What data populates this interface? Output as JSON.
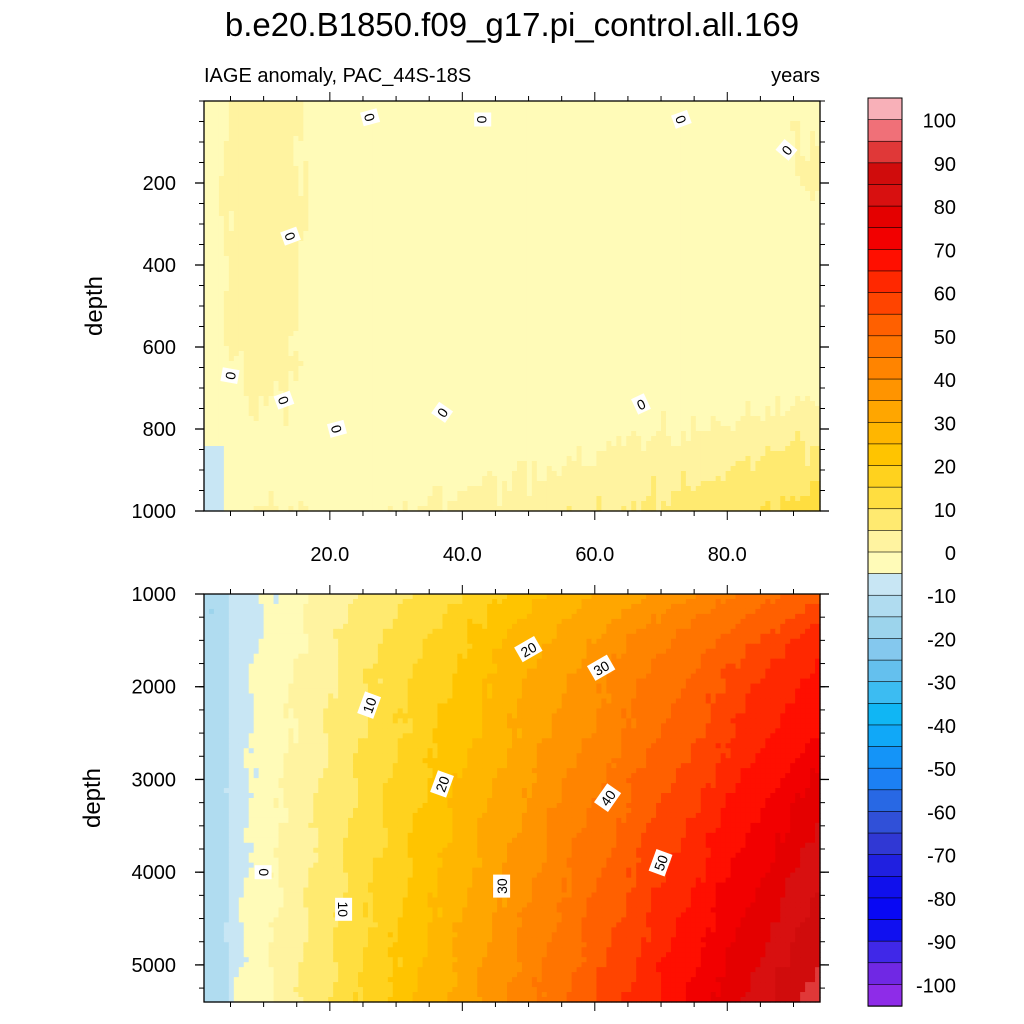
{
  "figure": {
    "title": "b.e20.B1850.f09_g17.pi_control.all.169",
    "subtitle_left": "IAGE anomaly, PAC_44S-18S",
    "subtitle_right": "years"
  },
  "colorbar": {
    "labels": [
      "100",
      "90",
      "80",
      "70",
      "60",
      "50",
      "40",
      "30",
      "20",
      "10",
      "0",
      "-10",
      "-20",
      "-30",
      "-40",
      "-50",
      "-60",
      "-70",
      "-80",
      "-90",
      "-100"
    ],
    "levels_top_to_bottom": [
      105,
      100,
      95,
      90,
      85,
      80,
      75,
      70,
      65,
      60,
      55,
      50,
      45,
      40,
      35,
      30,
      25,
      20,
      15,
      10,
      5,
      0,
      -5,
      -10,
      -15,
      -20,
      -25,
      -30,
      -35,
      -40,
      -45,
      -50,
      -55,
      -60,
      -65,
      -70,
      -75,
      -80,
      -85,
      -90,
      -95,
      -100,
      -105
    ],
    "colors_top_to_bottom": [
      "#f8b0b8",
      "#f07078",
      "#e03838",
      "#d00c0c",
      "#d81010",
      "#e40000",
      "#f20000",
      "#ff0f00",
      "#ff2800",
      "#ff4400",
      "#ff6000",
      "#ff7400",
      "#ff8400",
      "#ff9400",
      "#ffa600",
      "#ffb600",
      "#ffc400",
      "#ffd21e",
      "#ffde40",
      "#ffea70",
      "#fff3a0",
      "#fffbb8",
      "#c8e6f4",
      "#b0dcf0",
      "#9cd4ec",
      "#84c8ee",
      "#64c0ee",
      "#3cbcf2",
      "#10b6f4",
      "#10a8f8",
      "#1494f8",
      "#1c80f4",
      "#2868e4",
      "#3050d8",
      "#3038d4",
      "#2020e0",
      "#1010ec",
      "#0808f4",
      "#1010f0",
      "#4028e8",
      "#7028e4",
      "#8e2ce8"
    ]
  },
  "chart_data": [
    {
      "type": "heatmap",
      "panel": "upper",
      "ylabel": "depth",
      "xlim": [
        1,
        94
      ],
      "ylim": [
        0,
        1000
      ],
      "y_inverted": true,
      "xticks": [
        "20.0",
        "40.0",
        "60.0",
        "80.0"
      ],
      "xtick_values": [
        20,
        40,
        60,
        80
      ],
      "yticks": [
        "200",
        "400",
        "600",
        "800",
        "1000"
      ],
      "ytick_values": [
        200,
        400,
        600,
        800,
        1000
      ],
      "contour_interval": 5,
      "contour_labels": [
        {
          "text": "0",
          "x": 26,
          "y": 40,
          "rot": 75
        },
        {
          "text": "0",
          "x": 43,
          "y": 45,
          "rot": 90
        },
        {
          "text": "0",
          "x": 73,
          "y": 45,
          "rot": 70
        },
        {
          "text": "0",
          "x": 89,
          "y": 120,
          "rot": -50
        },
        {
          "text": "0",
          "x": 14,
          "y": 330,
          "rot": 70
        },
        {
          "text": "0",
          "x": 5,
          "y": 670,
          "rot": -80
        },
        {
          "text": "0",
          "x": 13,
          "y": 730,
          "rot": 70
        },
        {
          "text": "0",
          "x": 21,
          "y": 800,
          "rot": 75
        },
        {
          "text": "0",
          "x": 37,
          "y": 760,
          "rot": -55
        },
        {
          "text": "0",
          "x": 67,
          "y": 740,
          "rot": -25
        }
      ]
    },
    {
      "type": "heatmap",
      "panel": "lower",
      "ylabel": "depth",
      "xlim": [
        1,
        94
      ],
      "ylim": [
        1000,
        5400
      ],
      "y_inverted": true,
      "yticks": [
        "1000",
        "2000",
        "3000",
        "4000",
        "5000"
      ],
      "ytick_values": [
        1000,
        2000,
        3000,
        4000,
        5000
      ],
      "contour_interval": 5,
      "contour_labels": [
        {
          "text": "20",
          "x": 50,
          "y": 1600,
          "rot": -30
        },
        {
          "text": "30",
          "x": 61,
          "y": 1800,
          "rot": -30
        },
        {
          "text": "10",
          "x": 26,
          "y": 2200,
          "rot": -70
        },
        {
          "text": "20",
          "x": 37,
          "y": 3050,
          "rot": -70
        },
        {
          "text": "40",
          "x": 62,
          "y": 3200,
          "rot": -55
        },
        {
          "text": "50",
          "x": 70,
          "y": 3900,
          "rot": -70
        },
        {
          "text": "0",
          "x": 10,
          "y": 4000,
          "rot": -90
        },
        {
          "text": "30",
          "x": 46,
          "y": 4150,
          "rot": -90
        },
        {
          "text": "10",
          "x": 22,
          "y": 4400,
          "rot": 90
        }
      ]
    }
  ]
}
